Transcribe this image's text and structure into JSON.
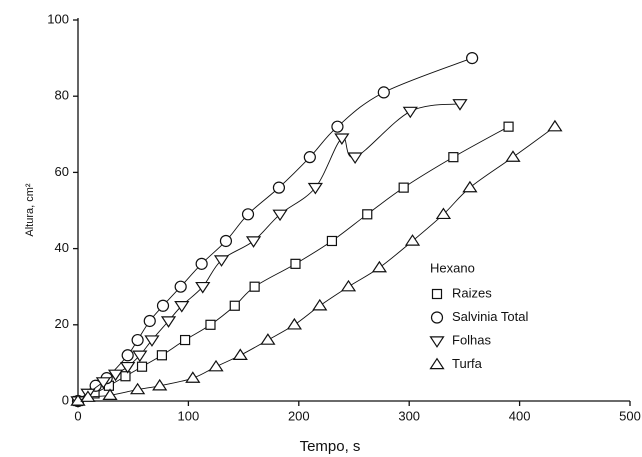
{
  "chart_data": {
    "type": "scatter",
    "xlabel": "Tempo, s",
    "ylabel": "Altura, cm²",
    "legend_title": "Hexano",
    "xlim": [
      0,
      500
    ],
    "xticks": [
      0,
      100,
      200,
      300,
      400,
      500
    ],
    "ylim": [
      0,
      100
    ],
    "yticks": [
      0,
      20,
      40,
      60,
      80,
      100
    ],
    "grid": false,
    "legend": "lower right",
    "series": [
      {
        "name": "Raizes",
        "color": "#111111",
        "marker": "square",
        "x": [
          0,
          15,
          28,
          43,
          58,
          76,
          97,
          120,
          142,
          160,
          197,
          230,
          262,
          295,
          340,
          390
        ],
        "values": [
          0,
          2,
          4,
          6.5,
          9,
          12,
          16,
          20,
          25,
          30,
          36,
          42,
          49,
          56,
          64,
          72
        ]
      },
      {
        "name": "Salvinia Total",
        "color": "#111111",
        "marker": "circle",
        "x": [
          0,
          16,
          26,
          45,
          54,
          65,
          77,
          93,
          112,
          134,
          154,
          182,
          210,
          235,
          277,
          357
        ],
        "values": [
          0,
          4,
          6,
          12,
          16,
          21,
          25,
          30,
          36,
          42,
          49,
          56,
          64,
          72,
          81,
          90
        ]
      },
      {
        "name": "Folhas",
        "color": "#111111",
        "marker": "triangle-up",
        "x": [
          0,
          9,
          23,
          34,
          45,
          56,
          67,
          82,
          94,
          113,
          130,
          159,
          183,
          215,
          239,
          251,
          301,
          346
        ],
        "values": [
          0,
          2,
          5,
          7,
          9,
          12,
          16,
          21,
          25,
          30,
          37,
          42,
          49,
          56,
          69,
          64,
          76,
          78
        ]
      },
      {
        "name": "Turfa",
        "color": "#111111",
        "marker": "triangle-down",
        "x": [
          0,
          9,
          29,
          54,
          74,
          104,
          125,
          147,
          172,
          196,
          219,
          245,
          273,
          303,
          331,
          355,
          394,
          432
        ],
        "values": [
          0,
          1,
          1.5,
          3,
          4,
          6,
          9,
          12,
          16,
          20,
          25,
          30,
          35,
          42,
          49,
          56,
          64,
          72
        ]
      }
    ]
  }
}
